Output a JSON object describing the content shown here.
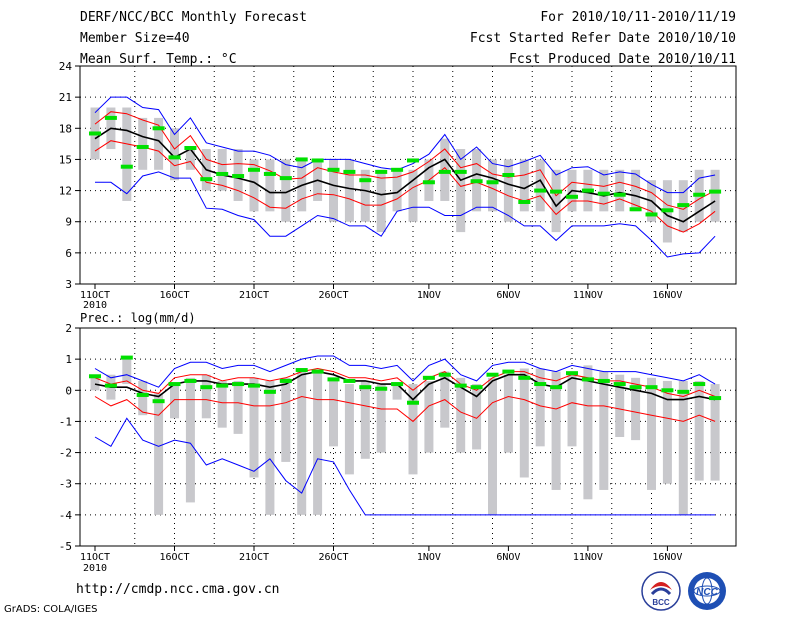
{
  "header": {
    "title": "DERF/NCC/BCC Monthly Forecast",
    "member_size": "Member Size=40",
    "variable": "Mean Surf. Temp.: °C",
    "period": "For 2010/10/11-2010/11/19",
    "fcst_started": "Fcst Started Refer Date 2010/10/10",
    "fcst_produced": "Fcst Produced Date 2010/10/11"
  },
  "footer": {
    "url": "http://cmdp.ncc.cma.gov.cn",
    "grads_credit": "GrADS: COLA/IGES"
  },
  "logos": {
    "bcc": "BCC",
    "ncc": "NCC"
  },
  "colors": {
    "mean": "#000000",
    "spread": "#ff0000",
    "range": "#0000ff",
    "observed": "#00e000",
    "climatology_bar": "#c8c8cc",
    "grid": "#000000"
  },
  "chart_data": [
    {
      "id": "temperature",
      "type": "line",
      "title": "Mean Surf. Temp.: °C",
      "x_tick_labels": [
        "11OCT",
        "16OCT",
        "21OCT",
        "26OCT",
        "1NOV",
        "6NOV",
        "11NOV",
        "16NOV"
      ],
      "x_tick_days": [
        1,
        6,
        11,
        16,
        22,
        27,
        32,
        37
      ],
      "year_label": "2010",
      "ylim": [
        3,
        24
      ],
      "y_ticks": [
        3,
        6,
        9,
        12,
        15,
        18,
        21,
        24
      ],
      "days": [
        1,
        2,
        3,
        4,
        5,
        6,
        7,
        8,
        9,
        10,
        11,
        12,
        13,
        14,
        15,
        16,
        17,
        18,
        19,
        20,
        21,
        22,
        23,
        24,
        25,
        26,
        27,
        28,
        29,
        30,
        31,
        32,
        33,
        34,
        35,
        36,
        37,
        38,
        39,
        40
      ],
      "series": [
        {
          "name": "max",
          "color": "#0000ff",
          "values": [
            19.5,
            21,
            21,
            20,
            19.8,
            17.4,
            19,
            16.6,
            16.2,
            15.8,
            15.8,
            15.4,
            14.5,
            14.2,
            15,
            15,
            15,
            14.6,
            14.2,
            14,
            14.6,
            15.5,
            17.4,
            15,
            16.2,
            14.6,
            14.3,
            14.8,
            15.4,
            13.5,
            14.2,
            14.3,
            13.5,
            13.8,
            13.6,
            12.6,
            11.8,
            11.8,
            13.2,
            13.5
          ]
        },
        {
          "name": "upper",
          "color": "#ff0000",
          "values": [
            18.4,
            19.6,
            19.4,
            18.8,
            18.3,
            16,
            17.3,
            15,
            14.5,
            14.6,
            14.5,
            13.9,
            13.1,
            13.2,
            14.2,
            13.8,
            13.5,
            13.5,
            13.2,
            13.3,
            13.8,
            14.8,
            16,
            14.2,
            14.6,
            13.6,
            13.3,
            13.5,
            14,
            11.5,
            12.8,
            12.6,
            12.4,
            12.8,
            12.4,
            11.8,
            10.6,
            10.2,
            11.2,
            12
          ]
        },
        {
          "name": "mean",
          "color": "#000000",
          "values": [
            17,
            18,
            17.8,
            17.2,
            16.8,
            15.2,
            16,
            14,
            13.5,
            13.2,
            12.8,
            11.8,
            11.8,
            12.5,
            13,
            12.5,
            12.2,
            12,
            11.6,
            11.8,
            13,
            14.2,
            15,
            13,
            13.6,
            13.2,
            12.6,
            12.2,
            13,
            10.5,
            12,
            11.8,
            11.5,
            11.8,
            11.5,
            11,
            9.6,
            9,
            10,
            11
          ]
        },
        {
          "name": "lower",
          "color": "#ff0000",
          "values": [
            15.8,
            16.8,
            16.5,
            16.2,
            15.8,
            14.4,
            14.8,
            12.8,
            12.5,
            12,
            11.3,
            10.4,
            10.3,
            11.2,
            11.7,
            11.6,
            11.2,
            10.6,
            10.6,
            11.2,
            12.3,
            13,
            14.2,
            12.4,
            12.8,
            12.2,
            11.5,
            11,
            11.5,
            9.7,
            11,
            11,
            10.7,
            11.2,
            10.6,
            10,
            8.6,
            8,
            8.8,
            10
          ]
        },
        {
          "name": "min",
          "color": "#0000ff",
          "values": [
            12.8,
            12.8,
            11.7,
            13.4,
            13.8,
            13.2,
            13.2,
            10.3,
            10.2,
            9.6,
            9.2,
            7.6,
            7.6,
            8.6,
            9.6,
            9.3,
            8.6,
            8.6,
            7.6,
            10,
            10.4,
            10.4,
            9.6,
            9.6,
            10.4,
            10.4,
            9.6,
            8.6,
            8.6,
            7.2,
            8.6,
            8.6,
            8.6,
            8.8,
            8.6,
            7.2,
            5.6,
            5.9,
            6,
            7.6
          ]
        }
      ],
      "bars": {
        "name": "climatology range",
        "color": "#c8c8cc",
        "low": [
          15,
          16,
          11,
          14,
          14,
          13,
          14,
          12,
          12,
          11,
          10,
          10,
          9,
          10,
          11,
          9,
          9,
          9,
          8,
          10,
          9,
          11,
          11,
          8,
          10,
          10,
          9,
          10,
          10,
          8,
          10,
          10,
          10,
          10,
          10,
          9,
          7,
          8,
          9,
          9
        ],
        "high": [
          20,
          20,
          20,
          19,
          19,
          18,
          16,
          16,
          16,
          16,
          15,
          15,
          15,
          15,
          15,
          15,
          15,
          14,
          14,
          14,
          14,
          15,
          17,
          16,
          16,
          15,
          15,
          15,
          15,
          14,
          14,
          14,
          14,
          14,
          14,
          13,
          13,
          13,
          14,
          14
        ]
      },
      "observed": {
        "name": "observed",
        "color": "#00e000",
        "values": [
          17.5,
          19,
          14.3,
          16.2,
          18,
          15.2,
          16.1,
          13.1,
          13.6,
          13.4,
          14,
          13.6,
          13.2,
          15,
          14.9,
          14,
          13.8,
          13,
          13.8,
          14,
          14.9,
          12.8,
          13.8,
          13.8,
          12.9,
          12.8,
          13.5,
          10.9,
          12,
          11.9,
          11.4,
          12,
          11.7,
          11.6,
          10.2,
          9.7,
          10.1,
          10.6,
          11.6,
          11.9
        ]
      }
    },
    {
      "id": "precipitation",
      "type": "line",
      "title": "Prec.: log(mm/d)",
      "x_tick_labels": [
        "11OCT",
        "16OCT",
        "21OCT",
        "26OCT",
        "1NOV",
        "6NOV",
        "11NOV",
        "16NOV"
      ],
      "x_tick_days": [
        1,
        6,
        11,
        16,
        22,
        27,
        32,
        37
      ],
      "year_label": "2010",
      "ylim": [
        -5,
        2
      ],
      "y_ticks": [
        -5,
        -4,
        -3,
        -2,
        -1,
        0,
        1,
        2
      ],
      "days": [
        1,
        2,
        3,
        4,
        5,
        6,
        7,
        8,
        9,
        10,
        11,
        12,
        13,
        14,
        15,
        16,
        17,
        18,
        19,
        20,
        21,
        22,
        23,
        24,
        25,
        26,
        27,
        28,
        29,
        30,
        31,
        32,
        33,
        34,
        35,
        36,
        37,
        38,
        39,
        40
      ],
      "series": [
        {
          "name": "max",
          "color": "#0000ff",
          "values": [
            0.7,
            0.4,
            0.5,
            0.3,
            0.1,
            0.7,
            0.9,
            0.9,
            0.7,
            0.8,
            0.8,
            0.6,
            0.8,
            1,
            1.1,
            1.1,
            0.8,
            0.8,
            0.7,
            0.8,
            0.3,
            0.8,
            1,
            0.5,
            0.3,
            0.8,
            0.9,
            0.9,
            0.7,
            0.6,
            0.8,
            0.7,
            0.6,
            0.6,
            0.6,
            0.5,
            0.4,
            0.3,
            0.5,
            0.2
          ]
        },
        {
          "name": "upper",
          "color": "#ff0000",
          "values": [
            0.4,
            0.2,
            0.3,
            0,
            -0.1,
            0.4,
            0.5,
            0.5,
            0.3,
            0.4,
            0.4,
            0.3,
            0.4,
            0.6,
            0.7,
            0.6,
            0.4,
            0.4,
            0.3,
            0.4,
            0,
            0.4,
            0.6,
            0.2,
            0,
            0.4,
            0.6,
            0.6,
            0.4,
            0.3,
            0.5,
            0.4,
            0.3,
            0.3,
            0.2,
            0.1,
            -0.1,
            -0.2,
            0,
            -0.2
          ]
        },
        {
          "name": "mean",
          "color": "#000000",
          "values": [
            0.2,
            0.1,
            0.1,
            -0.1,
            -0.2,
            0.2,
            0.3,
            0.3,
            0.2,
            0.2,
            0.2,
            0.1,
            0.2,
            0.5,
            0.6,
            0.5,
            0.3,
            0.3,
            0.2,
            0.2,
            -0.3,
            0.2,
            0.4,
            0.1,
            -0.2,
            0.3,
            0.5,
            0.5,
            0.2,
            0.1,
            0.4,
            0.3,
            0.2,
            0.1,
            0,
            -0.1,
            -0.3,
            -0.3,
            -0.2,
            -0.3
          ]
        },
        {
          "name": "lower",
          "color": "#ff0000",
          "values": [
            -0.2,
            -0.5,
            -0.3,
            -0.7,
            -0.8,
            -0.3,
            -0.3,
            -0.3,
            -0.4,
            -0.4,
            -0.5,
            -0.5,
            -0.4,
            -0.2,
            -0.3,
            -0.3,
            -0.4,
            -0.5,
            -0.6,
            -0.6,
            -1,
            -0.5,
            -0.3,
            -0.7,
            -0.9,
            -0.4,
            -0.2,
            -0.3,
            -0.5,
            -0.6,
            -0.4,
            -0.5,
            -0.5,
            -0.6,
            -0.7,
            -0.8,
            -0.9,
            -1,
            -0.8,
            -1
          ]
        },
        {
          "name": "min",
          "color": "#0000ff",
          "values": [
            -1.5,
            -1.8,
            -0.9,
            -1.6,
            -1.8,
            -1.6,
            -1.7,
            -2.4,
            -2.2,
            -2.4,
            -2.6,
            -2.2,
            -2.9,
            -3.3,
            -2.2,
            -2.3,
            -3.2,
            -4,
            -4,
            -4,
            -4,
            -4,
            -4,
            -4,
            -4,
            -4,
            -4,
            -4,
            -4,
            -4,
            -4,
            -4,
            -4,
            -4,
            -4,
            -4,
            -4,
            -4,
            -4,
            -4
          ]
        }
      ],
      "bars": {
        "name": "climatology range",
        "color": "#c8c8cc",
        "low": [
          0,
          -0.3,
          0.2,
          -0.8,
          -4,
          -0.9,
          -3.6,
          -0.9,
          -1.2,
          -1.4,
          -2.8,
          -4,
          -2.3,
          -4,
          -4,
          -1.8,
          -2.7,
          -2.2,
          -2,
          -0.3,
          -2.7,
          -2,
          -1.2,
          -2,
          -1.9,
          -4,
          -2,
          -2.8,
          -1.8,
          -3.2,
          -1.8,
          -3.5,
          -3.2,
          -1.5,
          -1.6,
          -3.2,
          -3,
          -4,
          -2.9,
          -2.9
        ],
        "high": [
          0.5,
          0.5,
          1,
          0.3,
          -0.1,
          0.2,
          0.4,
          0.5,
          0.3,
          0.3,
          0.4,
          0.3,
          0.4,
          0.7,
          0.6,
          0.4,
          0.2,
          0.3,
          0.2,
          0.2,
          0.2,
          0.3,
          0.6,
          0.4,
          0.2,
          0.4,
          0.5,
          0.7,
          0.7,
          0.6,
          0.6,
          0.8,
          0.6,
          0.5,
          0.4,
          0.4,
          0.3,
          0.3,
          0.3,
          0.2
        ]
      },
      "observed": {
        "name": "observed",
        "color": "#00e000",
        "values": [
          0.45,
          0.15,
          1.05,
          -0.15,
          -0.35,
          0.2,
          0.3,
          0.1,
          0.15,
          0.2,
          0.15,
          -0.05,
          0.3,
          0.65,
          0.6,
          0.35,
          0.3,
          0.1,
          0.05,
          0.2,
          -0.4,
          0.4,
          0.5,
          0.15,
          0.1,
          0.5,
          0.6,
          0.4,
          0.2,
          0.1,
          0.55,
          0.35,
          0.3,
          0.2,
          0.1,
          0.1,
          0,
          -0.05,
          0.2,
          -0.25
        ]
      }
    }
  ]
}
